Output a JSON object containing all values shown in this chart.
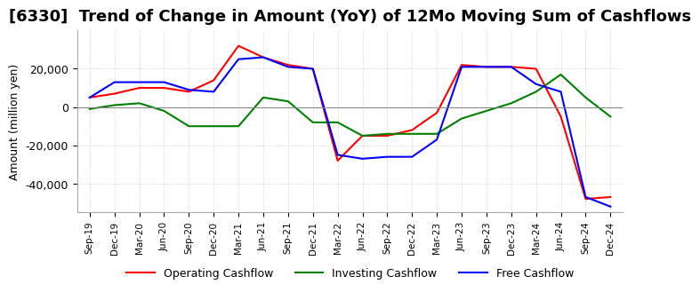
{
  "title": "[6330]  Trend of Change in Amount (YoY) of 12Mo Moving Sum of Cashflows",
  "ylabel": "Amount (million yen)",
  "background_color": "#ffffff",
  "grid_color": "#bbbbbb",
  "xlabels": [
    "Sep-19",
    "Dec-19",
    "Mar-20",
    "Jun-20",
    "Sep-20",
    "Dec-20",
    "Mar-21",
    "Jun-21",
    "Sep-21",
    "Dec-21",
    "Mar-22",
    "Jun-22",
    "Sep-22",
    "Dec-22",
    "Mar-23",
    "Jun-23",
    "Sep-23",
    "Dec-23",
    "Mar-24",
    "Jun-24",
    "Sep-24",
    "Dec-24"
  ],
  "operating": [
    5000,
    7000,
    10000,
    10000,
    8000,
    14000,
    32000,
    26000,
    22000,
    20000,
    -28000,
    -15000,
    -15000,
    -12000,
    -3000,
    22000,
    21000,
    21000,
    20000,
    -5000,
    -48000,
    -47000
  ],
  "investing": [
    -1000,
    1000,
    2000,
    -2000,
    -10000,
    -10000,
    -10000,
    5000,
    3000,
    -8000,
    -8000,
    -15000,
    -14000,
    -14000,
    -14000,
    -6000,
    -2000,
    2000,
    8000,
    17000,
    5000,
    -5000
  ],
  "free": [
    5000,
    13000,
    13000,
    13000,
    9000,
    8000,
    25000,
    26000,
    21000,
    20000,
    -25000,
    -27000,
    -26000,
    -26000,
    -17000,
    21000,
    21000,
    21000,
    12000,
    8000,
    -47000,
    -52000
  ],
  "operating_color": "#ff0000",
  "investing_color": "#008000",
  "free_color": "#0000ff",
  "ylim": [
    -55000,
    40000
  ],
  "yticks": [
    -40000,
    -20000,
    0,
    20000
  ],
  "title_fontsize": 13,
  "axis_fontsize": 9,
  "legend_fontsize": 9,
  "line_width": 1.5
}
